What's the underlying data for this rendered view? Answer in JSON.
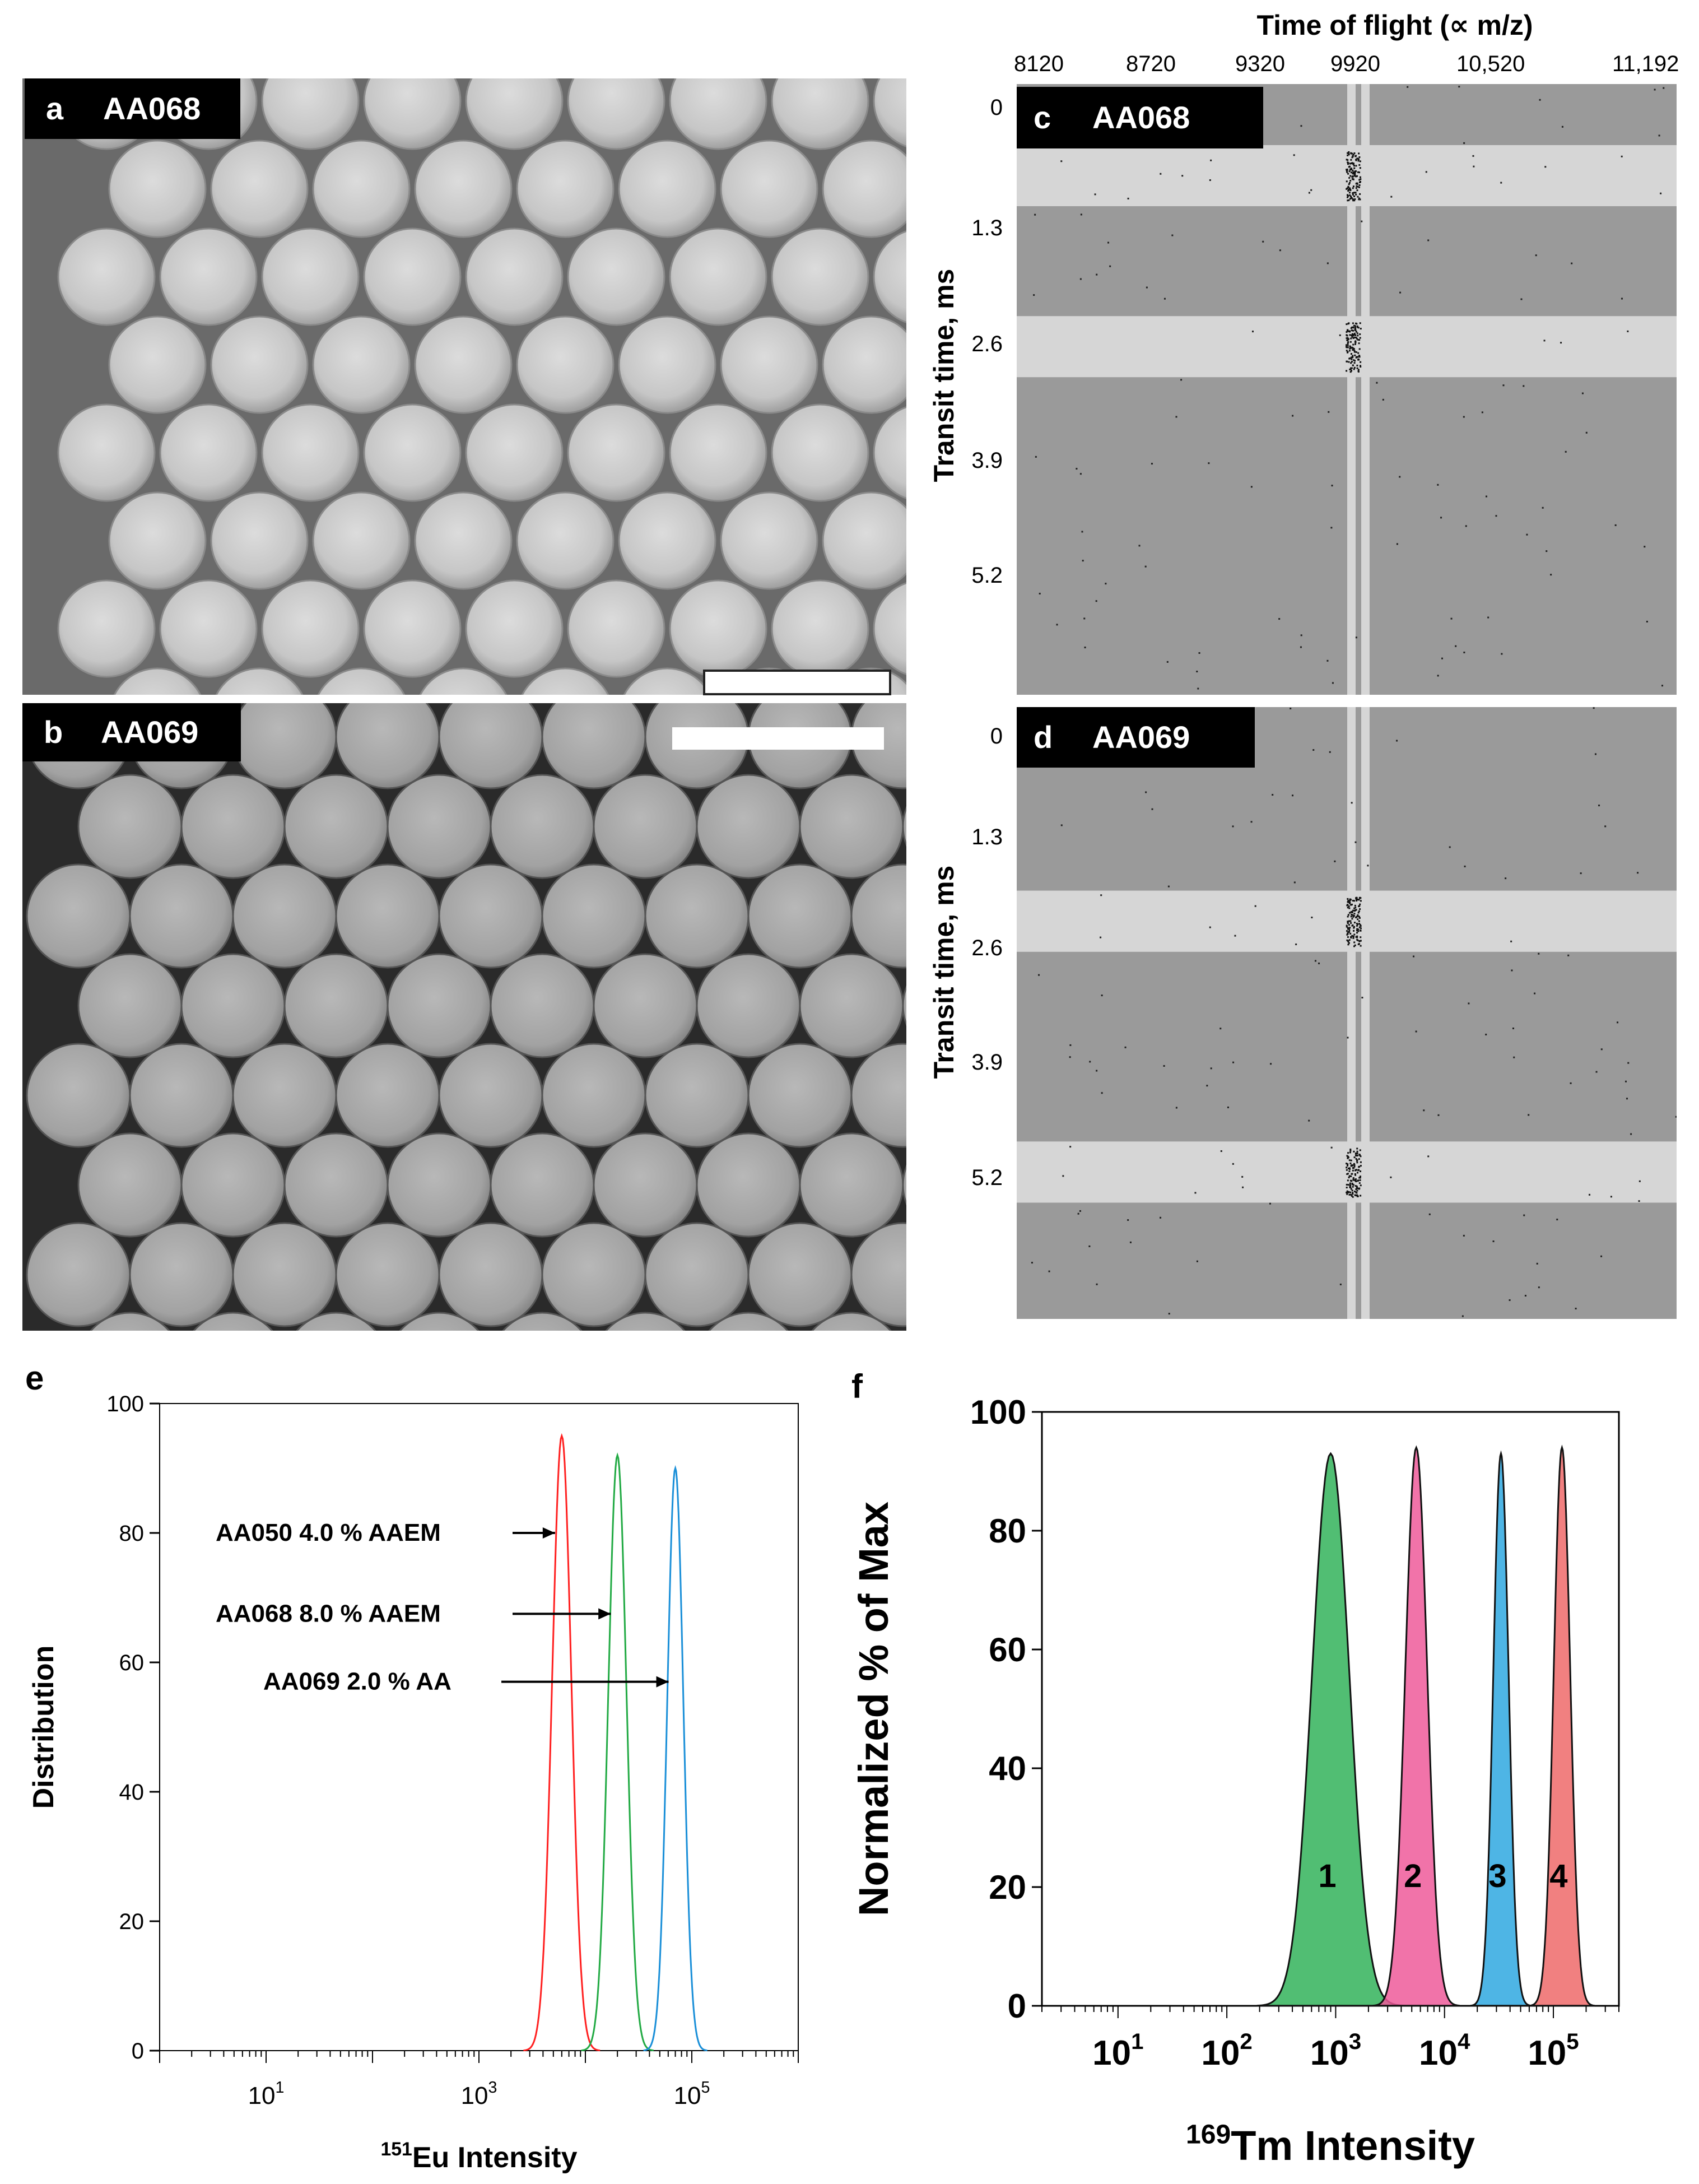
{
  "panels": {
    "a": {
      "letter": "a",
      "sample": "AA068"
    },
    "b": {
      "letter": "b",
      "sample": "AA069"
    },
    "c": {
      "letter": "c",
      "sample": "AA068"
    },
    "d": {
      "letter": "d",
      "sample": "AA069"
    },
    "e": {
      "letter": "e"
    },
    "f": {
      "letter": "f"
    }
  },
  "tof": {
    "top_axis_title": "Time of flight (∝ m/z)",
    "x_ticks": [
      "8120",
      "8720",
      "9320",
      "9920",
      "10,520",
      "11,192"
    ],
    "y_ticks": [
      "0",
      "1.3",
      "2.6",
      "3.9",
      "5.2"
    ],
    "y_label": "Transit time, ms",
    "bands_c": [
      0.05,
      0.33
    ],
    "bands_d": [
      0.25,
      0.66
    ],
    "colors": {
      "background": "#9a9a9a",
      "band": "#d6d6d6"
    }
  },
  "annotations_e": [
    {
      "text": "AA050 4.0 % AAEM"
    },
    {
      "text": "AA068 8.0 % AAEM"
    },
    {
      "text": "AA069 2.0 % AA"
    }
  ],
  "chart_data": [
    {
      "panel": "e",
      "type": "line",
      "xlabel_sup": "151",
      "xlabel": "Eu Intensity",
      "ylabel": "Distribution",
      "x_scale": "log",
      "xlim": [
        1,
        1000000
      ],
      "ylim": [
        0,
        100
      ],
      "y_ticks": [
        0,
        20,
        40,
        60,
        80,
        100
      ],
      "x_ticks": [
        {
          "base": "10",
          "exp": "1",
          "value": 10
        },
        {
          "base": "10",
          "exp": "3",
          "value": 1000
        },
        {
          "base": "10",
          "exp": "5",
          "value": 100000
        }
      ],
      "series": [
        {
          "name": "AA050 4.0 % AAEM",
          "color": "#ff2020",
          "peak_x": 6000,
          "peak_y": 95,
          "sigma_log": 0.09
        },
        {
          "name": "AA068 8.0 % AAEM",
          "color": "#22aa44",
          "peak_x": 20000,
          "peak_y": 92,
          "sigma_log": 0.085
        },
        {
          "name": "AA069 2.0 % AA",
          "color": "#1a8fd8",
          "peak_x": 70000,
          "peak_y": 90,
          "sigma_log": 0.075
        }
      ]
    },
    {
      "panel": "f",
      "type": "area",
      "xlabel_sup": "169",
      "xlabel": "Tm Intensity",
      "ylabel": "Normalized % of Max",
      "x_scale": "log",
      "xlim": [
        2,
        400000
      ],
      "ylim": [
        0,
        100
      ],
      "y_ticks": [
        0,
        20,
        40,
        60,
        80,
        100
      ],
      "x_ticks": [
        {
          "base": "10",
          "exp": "1",
          "value": 10
        },
        {
          "base": "10",
          "exp": "2",
          "value": 100
        },
        {
          "base": "10",
          "exp": "3",
          "value": 1000
        },
        {
          "base": "10",
          "exp": "4",
          "value": 10000
        },
        {
          "base": "10",
          "exp": "5",
          "value": 100000
        }
      ],
      "series": [
        {
          "name": "1",
          "color": "#33b35a",
          "peak_x": 900,
          "peak_y": 93,
          "sigma_log": 0.17
        },
        {
          "name": "2",
          "color": "#ee5a9a",
          "peak_x": 5500,
          "peak_y": 94,
          "sigma_log": 0.1
        },
        {
          "name": "3",
          "color": "#2fa8e0",
          "peak_x": 33000,
          "peak_y": 93,
          "sigma_log": 0.07
        },
        {
          "name": "4",
          "color": "#ee6a6a",
          "peak_x": 120000,
          "peak_y": 94,
          "sigma_log": 0.075
        }
      ]
    }
  ]
}
